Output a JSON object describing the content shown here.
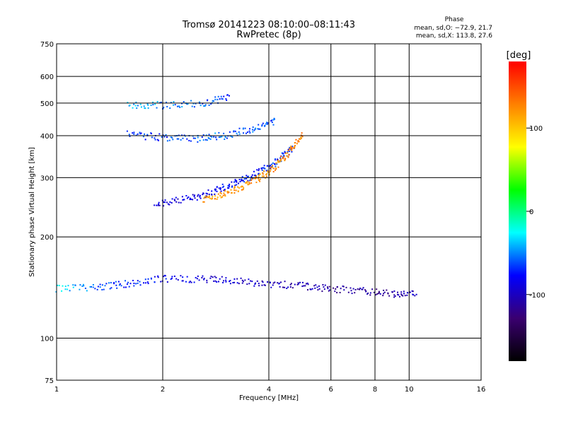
{
  "chart_data": {
    "type": "scatter",
    "title": "Tromsø 20141223 08:10:00–08:11:43",
    "subtitle": "RwPretec (8p)",
    "xlabel": "Frequency [MHz]",
    "ylabel": "Stationary phase Virtual Height [km]",
    "x_scale": "log",
    "y_scale": "log",
    "xlim": [
      1,
      16
    ],
    "ylim": [
      75,
      750
    ],
    "x_ticks": [
      1,
      2,
      4,
      6,
      8,
      10,
      16
    ],
    "y_ticks": [
      75,
      100,
      200,
      300,
      400,
      500,
      600,
      750
    ],
    "grid": true,
    "colorbar": {
      "label": "[deg]",
      "range": [
        -180,
        180
      ],
      "ticks": [
        100,
        0,
        -100
      ],
      "colors": [
        "#000000",
        "#3a0070",
        "#0000ff",
        "#00ffff",
        "#00ff00",
        "#ffff00",
        "#ff8000",
        "#ff0000"
      ]
    },
    "stats": {
      "heading": "Phase",
      "line_o": "mean, sd,O: −72.9, 21.7",
      "line_x": "mean, sd,X: 113.8, 27.6"
    },
    "traces": [
      {
        "x": [
          1.9,
          2.3,
          2.7,
          3.1,
          3.5,
          3.9,
          4.3,
          4.7
        ],
        "y": [
          250,
          258,
          270,
          285,
          300,
          318,
          340,
          370
        ],
        "phase": [
          -95,
          -90,
          -85,
          -80,
          -75,
          -70,
          -70,
          -72
        ]
      },
      {
        "x": [
          2.6,
          3.0,
          3.4,
          3.8,
          4.2,
          4.6,
          5.0
        ],
        "y": [
          258,
          270,
          283,
          300,
          325,
          360,
          405
        ],
        "phase": [
          115,
          118,
          120,
          122,
          125,
          128,
          130
        ]
      },
      {
        "x": [
          1.0,
          1.3,
          1.6,
          2.0,
          2.6,
          3.2,
          4.0,
          5.0,
          6.0,
          7.5,
          9.0,
          10.5
        ],
        "y": [
          140,
          142,
          145,
          150,
          150,
          148,
          145,
          143,
          140,
          138,
          135,
          137
        ],
        "phase": [
          -30,
          -60,
          -70,
          -80,
          -90,
          -95,
          -100,
          -105,
          -110,
          -115,
          -110,
          -100
        ]
      },
      {
        "x": [
          1.6,
          2.0,
          2.5,
          3.0,
          3.6,
          4.2
        ],
        "y": [
          403,
          395,
          392,
          400,
          420,
          440
        ],
        "phase": [
          -70,
          -65,
          -60,
          -55,
          -60,
          -65
        ]
      },
      {
        "x": [
          1.6,
          2.0,
          2.6,
          3.1
        ],
        "y": [
          495,
          492,
          500,
          520
        ],
        "phase": [
          -40,
          -50,
          -60,
          -70
        ]
      }
    ]
  }
}
